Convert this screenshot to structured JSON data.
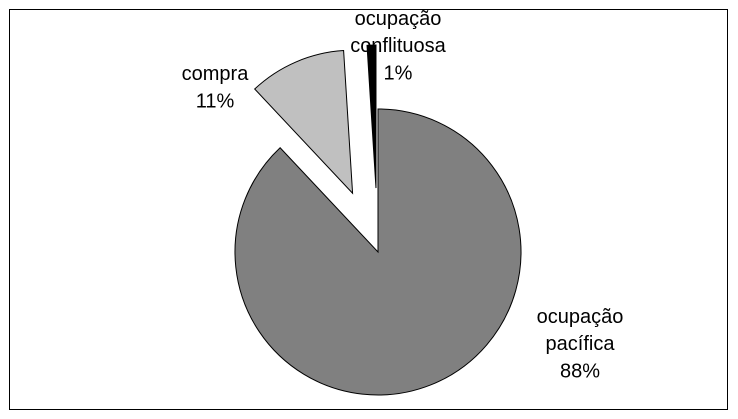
{
  "chart_data": {
    "type": "pie",
    "categories": [
      "ocupação pacífica",
      "compra",
      "ocupação conflituosa"
    ],
    "values": [
      88,
      11,
      1
    ],
    "value_labels": [
      "88%",
      "11%",
      "1%"
    ],
    "colors": [
      "#808080",
      "#c0c0c0",
      "#000000"
    ],
    "exploded": [
      false,
      true,
      true
    ]
  }
}
